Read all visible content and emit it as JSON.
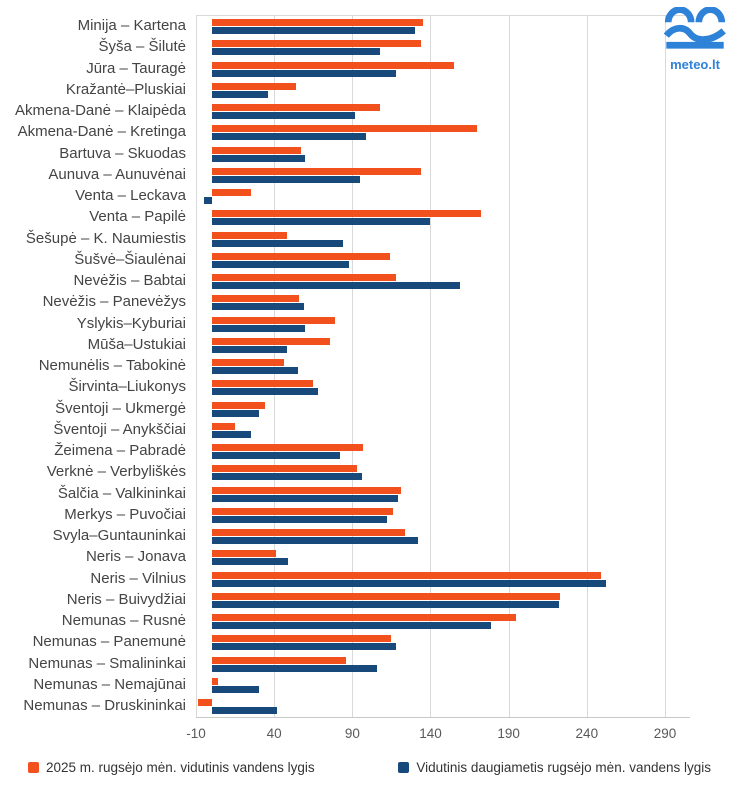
{
  "logo": {
    "text": "meteo.lt",
    "color": "#2e82d8"
  },
  "chart_data": {
    "type": "bar",
    "orientation": "horizontal",
    "title": "",
    "xlabel": "",
    "ylabel": "",
    "grid": true,
    "legend_position": "bottom",
    "axis": {
      "min": -10,
      "max": 306,
      "ticks": [
        -10,
        40,
        90,
        140,
        190,
        240,
        290
      ]
    },
    "categories": [
      "Minija – Kartena",
      "Šyša – Šilutė",
      "Jūra – Tauragė",
      "Kražantė–Pluskiai",
      "Akmena-Danė – Klaipėda",
      "Akmena-Danė – Kretinga",
      "Bartuva – Skuodas",
      "Aunuva – Aunuvėnai",
      "Venta – Leckava",
      "Venta – Papilė",
      "Šešupė – K. Naumiestis",
      "Šušvė–Šiaulėnai",
      "Nevėžis – Babtai",
      "Nevėžis – Panevėžys",
      "Yslykis–Kyburiai",
      "Mūša–Ustukiai",
      "Nemunėlis – Tabokinė",
      "Širvinta–Liukonys",
      "Šventoji – Ukmergė",
      "Šventoji – Anykščiai",
      "Žeimena – Pabradė",
      "Verknė – Verbyliškės",
      "Šalčia – Valkininkai",
      "Merkys – Puvočiai",
      "Svyla–Guntauninkai",
      "Neris – Jonava",
      "Neris – Vilnius",
      "Neris – Buivydžiai",
      "Nemunas – Rusnė",
      "Nemunas – Panemunė",
      "Nemunas – Smalininkai",
      "Nemunas – Nemajūnai",
      "Nemunas – Druskininkai"
    ],
    "series": [
      {
        "name": "2025 m. rugsėjo mėn. vidutinis vandens lygis",
        "color": "#f2501d",
        "values": [
          135,
          134,
          155,
          54,
          108,
          170,
          57,
          134,
          25,
          172,
          48,
          114,
          118,
          56,
          79,
          76,
          46,
          65,
          34,
          15,
          97,
          93,
          121,
          116,
          124,
          41,
          249,
          223,
          195,
          115,
          86,
          4,
          -9
        ]
      },
      {
        "name": "Vidutinis daugiametis rugsėjo mėn. vandens lygis",
        "color": "#17497b",
        "values": [
          130,
          108,
          118,
          36,
          92,
          99,
          60,
          95,
          -5,
          140,
          84,
          88,
          159,
          59,
          60,
          48,
          55,
          68,
          30,
          25,
          82,
          96,
          119,
          112,
          132,
          49,
          252,
          222,
          179,
          118,
          106,
          30,
          42
        ]
      }
    ]
  }
}
